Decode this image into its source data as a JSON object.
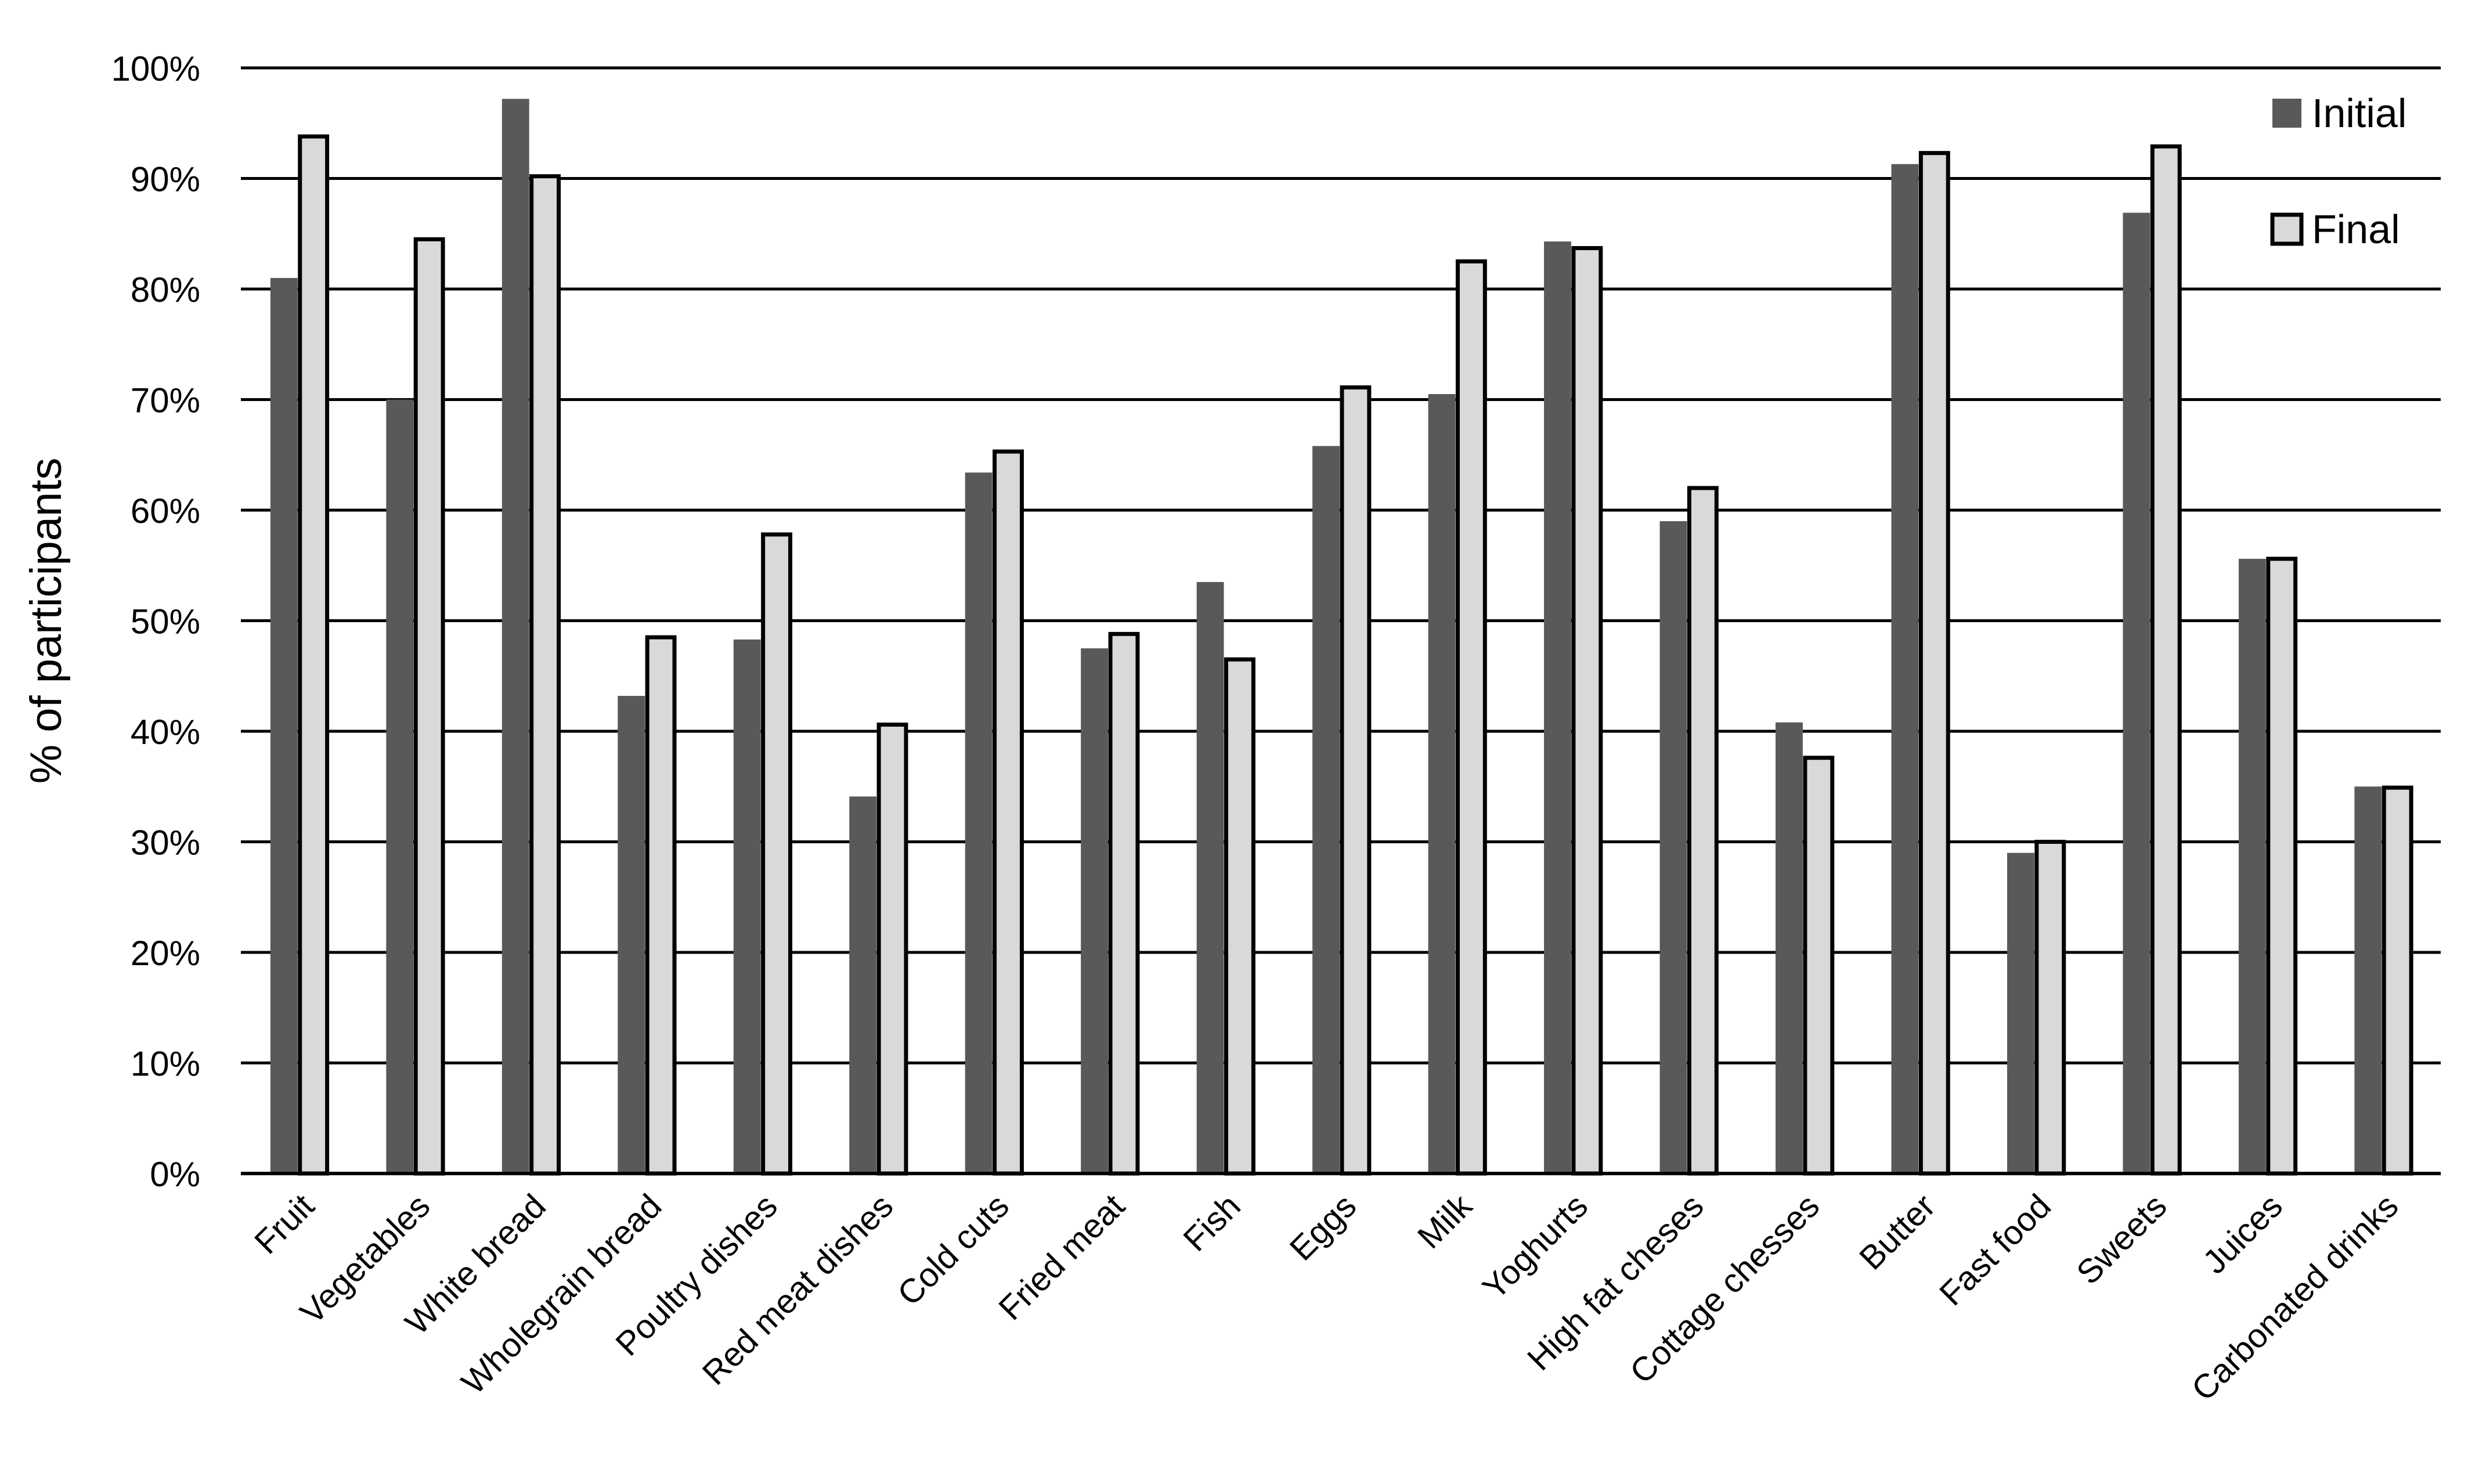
{
  "chart_data": {
    "type": "bar",
    "title": "",
    "xlabel": "",
    "ylabel": "% of participants",
    "ylim": [
      0,
      100
    ],
    "yticks": [
      "0%",
      "10%",
      "20%",
      "30%",
      "40%",
      "50%",
      "60%",
      "70%",
      "80%",
      "90%",
      "100%"
    ],
    "grid": true,
    "legend_position": "top-right",
    "categories": [
      "Fruit",
      "Vegetables",
      "White bread",
      "Wholegrain bread",
      "Poultry dishes",
      "Red meat dishes",
      "Cold cuts",
      "Fried meat",
      "Fish",
      "Eggs",
      "Milk",
      "Yoghurts",
      "High fat cheses",
      "Cottage chesses",
      "Butter",
      "Fast food",
      "Sweets",
      "Juices",
      "Carbonated drinks"
    ],
    "series": [
      {
        "name": "Initial",
        "color": "#595959",
        "values": [
          81,
          70,
          97.2,
          43.2,
          48.3,
          34.1,
          63.4,
          47.5,
          53.5,
          65.8,
          70.5,
          84.3,
          59,
          40.8,
          91.3,
          29,
          86.9,
          55.6,
          35
        ]
      },
      {
        "name": "Final",
        "color": "#d9d9d9",
        "values": [
          93.8,
          84.5,
          90.2,
          48.5,
          57.8,
          40.6,
          65.3,
          48.8,
          46.5,
          71.1,
          82.5,
          83.7,
          62,
          37.6,
          92.3,
          30,
          92.9,
          55.6,
          34.9
        ]
      }
    ]
  }
}
